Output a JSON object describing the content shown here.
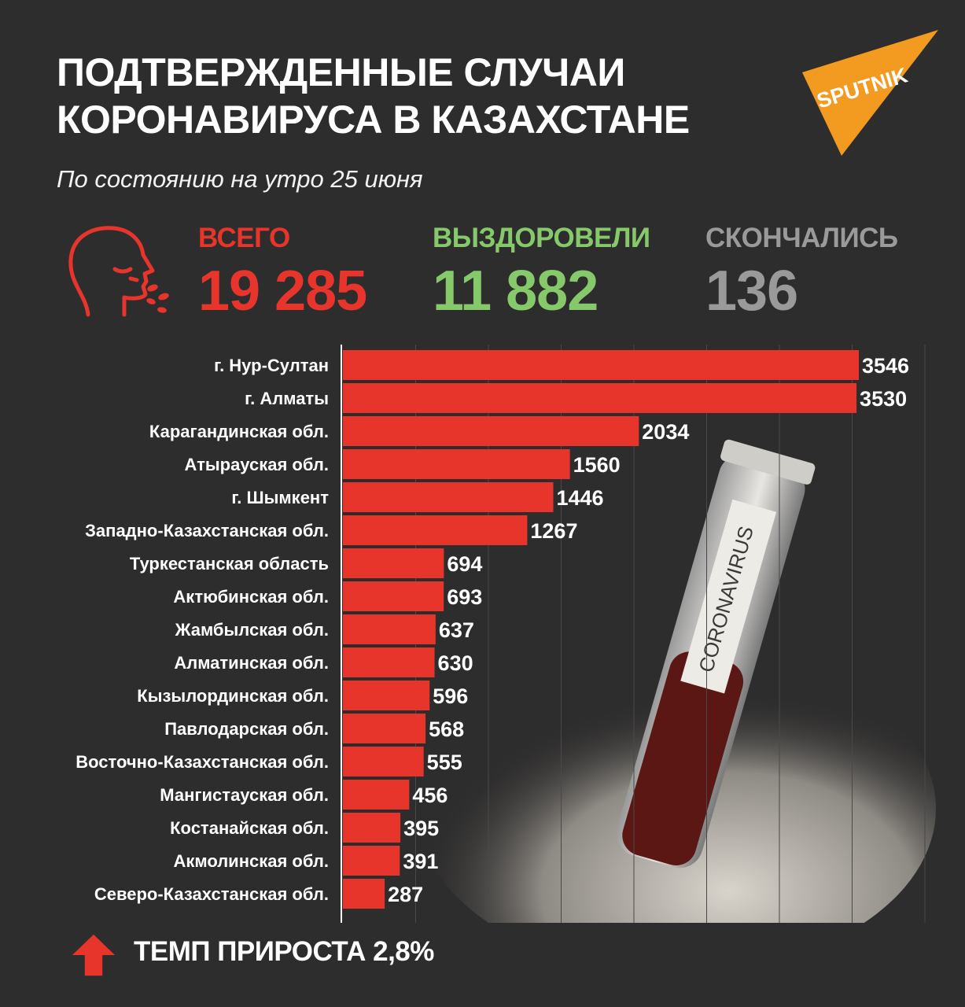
{
  "title_lines": [
    "ПОДТВЕРЖДЕННЫЕ СЛУЧАИ",
    "КОРОНАВИРУСА В КАЗАХСТАНЕ"
  ],
  "subtitle": "По состоянию на утро 25 июня",
  "logo_text": "SPUTNIK",
  "stats": {
    "total": {
      "label": "ВСЕГО",
      "value": "19 285"
    },
    "recovered": {
      "label": "ВЫЗДОРОВЕЛИ",
      "value": "11 882"
    },
    "deaths": {
      "label": "СКОНЧАЛИСЬ",
      "value": "136"
    }
  },
  "growth_rate": "ТЕМП ПРИРОСТА 2,8%",
  "photo_label": "CORONAVIRUS",
  "colors": {
    "background": "#2e2d2d",
    "bar": "#e8352b",
    "total": "#e8352b",
    "recovered": "#86c96b",
    "deaths": "#9a9a9a",
    "logo": "#f39a21"
  },
  "icons": [
    "sneezing-head-icon",
    "arrow-up-icon",
    "sputnik-logo"
  ],
  "chart_data": {
    "type": "bar",
    "orientation": "horizontal",
    "categories": [
      "г. Нур-Султан",
      "г. Алматы",
      "Карагандинская обл.",
      "Атырауская обл.",
      "г. Шымкент",
      "Западно-Казахстанская обл.",
      "Туркестанская область",
      "Актюбинская обл.",
      "Жамбылская обл.",
      "Алматинская обл.",
      "Кызылординская обл.",
      "Павлодарская обл.",
      "Восточно-Казахстанская обл.",
      "Мангистауская обл.",
      "Костанайская обл.",
      "Акмолинская обл.",
      "Северо-Казахстанская обл."
    ],
    "values": [
      3546,
      3530,
      2034,
      1560,
      1446,
      1267,
      694,
      693,
      637,
      630,
      596,
      568,
      555,
      456,
      395,
      391,
      287
    ],
    "xlim": [
      0,
      4000
    ],
    "grid": true,
    "legend": "none"
  }
}
